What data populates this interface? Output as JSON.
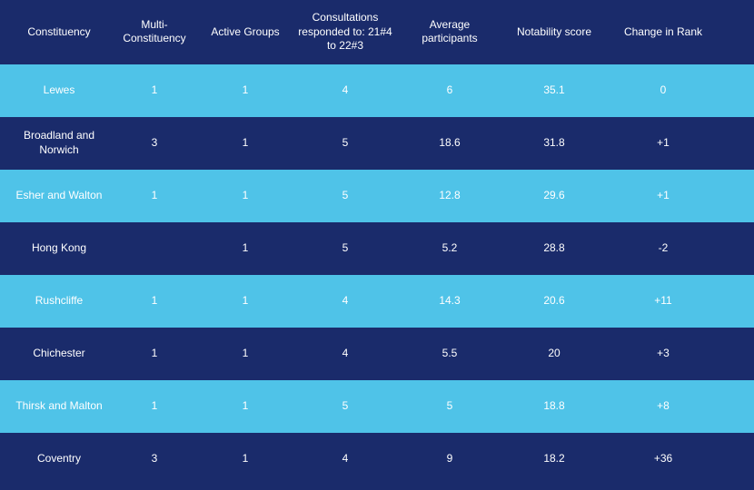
{
  "table": {
    "background_color": "#1a2b6b",
    "row_odd_color": "#4fc3e8",
    "row_even_color": "#1a2b6b",
    "text_color": "#ffffff",
    "header_fontsize": 12,
    "cell_fontsize": 12,
    "columns": [
      "Constituency",
      "Multi-Constituency",
      "Active Groups",
      "Consultations responded to: 21#4 to 22#3",
      "Average participants",
      "Notability score",
      "Change in Rank"
    ],
    "rows": [
      {
        "constituency": "Lewes",
        "multi": "1",
        "active": "1",
        "consult": "4",
        "avg": "6",
        "score": "35.1",
        "change": "0"
      },
      {
        "constituency": "Broadland and Norwich",
        "multi": "3",
        "active": "1",
        "consult": "5",
        "avg": "18.6",
        "score": "31.8",
        "change": "+1"
      },
      {
        "constituency": "Esher and Walton",
        "multi": "1",
        "active": "1",
        "consult": "5",
        "avg": "12.8",
        "score": "29.6",
        "change": "+1"
      },
      {
        "constituency": "Hong Kong",
        "multi": "",
        "active": "1",
        "consult": "5",
        "avg": "5.2",
        "score": "28.8",
        "change": "-2"
      },
      {
        "constituency": "Rushcliffe",
        "multi": "1",
        "active": "1",
        "consult": "4",
        "avg": "14.3",
        "score": "20.6",
        "change": "+11"
      },
      {
        "constituency": "Chichester",
        "multi": "1",
        "active": "1",
        "consult": "4",
        "avg": "5.5",
        "score": "20",
        "change": "+3"
      },
      {
        "constituency": "Thirsk and Malton",
        "multi": "1",
        "active": "1",
        "consult": "5",
        "avg": "5",
        "score": "18.8",
        "change": "+8"
      },
      {
        "constituency": "Coventry",
        "multi": "3",
        "active": "1",
        "consult": "4",
        "avg": "9",
        "score": "18.2",
        "change": "+36"
      }
    ]
  }
}
